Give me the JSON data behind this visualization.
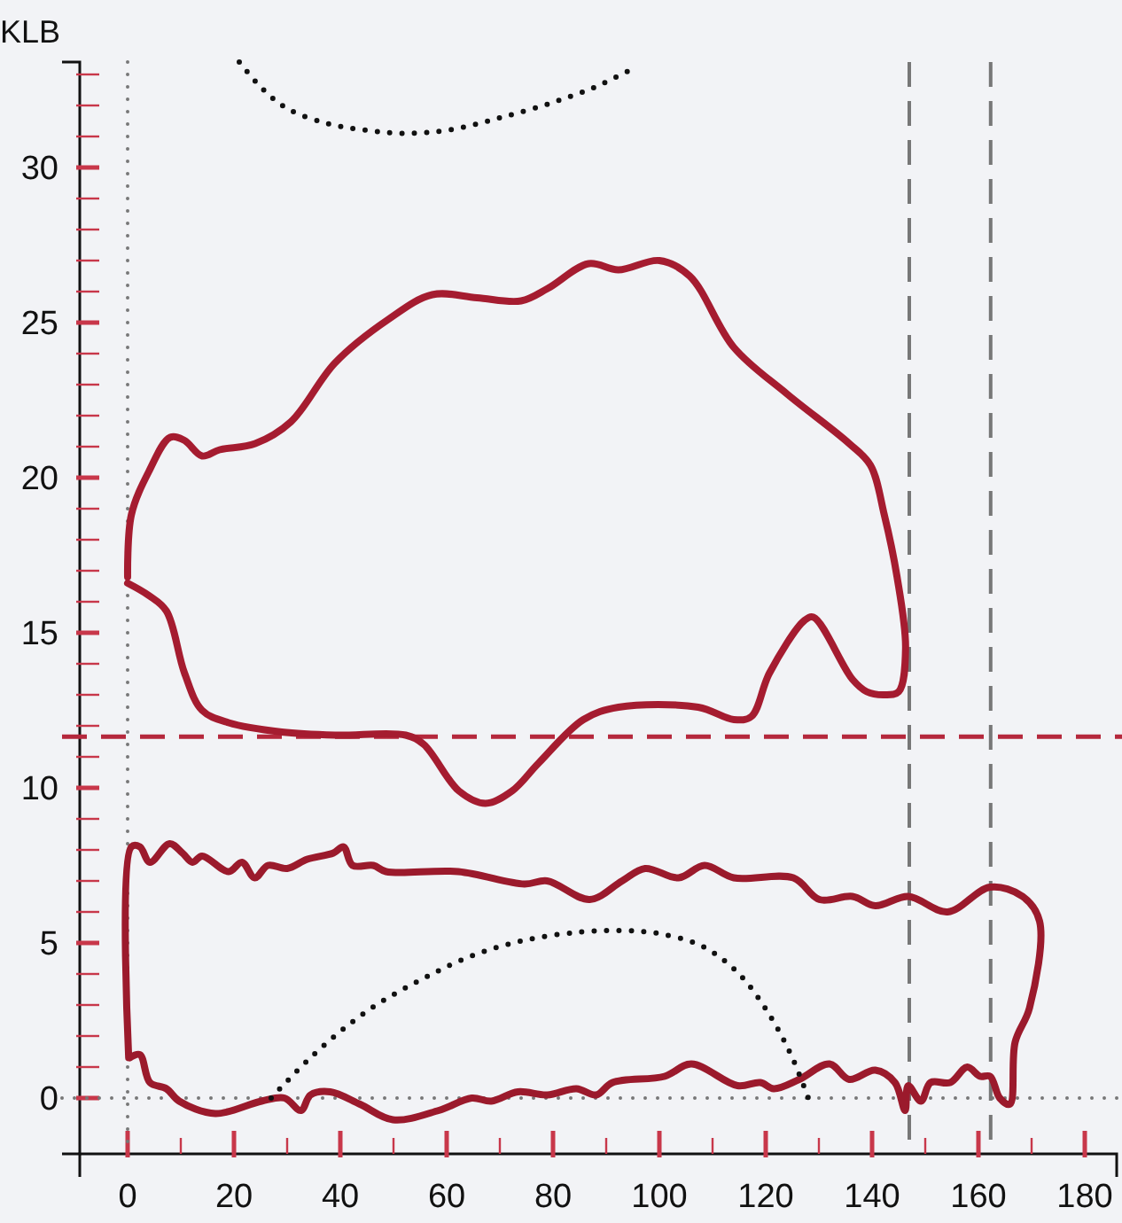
{
  "chart_data": {
    "type": "line",
    "ylabel": "KLB",
    "xlim": [
      -9,
      186
    ],
    "ylim": [
      -1.8,
      33.4
    ],
    "xticks": [
      0,
      {
        "value": 10,
        "label": null
      },
      20,
      {
        "value": 30,
        "label": null
      },
      40,
      {
        "value": 50,
        "label": null
      },
      60,
      {
        "value": 70,
        "label": null
      },
      80,
      {
        "value": 90,
        "label": null
      },
      100,
      {
        "value": 110,
        "label": null
      },
      120,
      {
        "value": 130,
        "label": null
      },
      140,
      {
        "value": 150,
        "label": null
      },
      160,
      {
        "value": 170,
        "label": null
      },
      180
    ],
    "yticks": [
      0,
      {
        "value": 1,
        "label": null
      },
      {
        "value": 2,
        "label": null
      },
      {
        "value": 3,
        "label": null
      },
      {
        "value": 4,
        "label": null
      },
      5,
      {
        "value": 6,
        "label": null
      },
      {
        "value": 7,
        "label": null
      },
      {
        "value": 8,
        "label": null
      },
      {
        "value": 9,
        "label": null
      },
      10,
      {
        "value": 11,
        "label": null
      },
      {
        "value": 12,
        "label": null
      },
      {
        "value": 13,
        "label": null
      },
      {
        "value": 14,
        "label": null
      },
      15,
      {
        "value": 16,
        "label": null
      },
      {
        "value": 17,
        "label": null
      },
      {
        "value": 18,
        "label": null
      },
      {
        "value": 19,
        "label": null
      },
      20,
      {
        "value": 21,
        "label": null
      },
      {
        "value": 22,
        "label": null
      },
      {
        "value": 23,
        "label": null
      },
      {
        "value": 24,
        "label": null
      },
      25,
      {
        "value": 26,
        "label": null
      },
      {
        "value": 27,
        "label": null
      },
      {
        "value": 28,
        "label": null
      },
      {
        "value": 29,
        "label": null
      },
      30,
      {
        "value": 31,
        "label": null
      },
      {
        "value": 32,
        "label": null
      },
      {
        "value": 33,
        "label": null
      }
    ],
    "grid": false,
    "marker": "none",
    "ref_lines": [
      {
        "axis": "x",
        "value": 0,
        "color": "#777777",
        "line_style": "dotted"
      },
      {
        "axis": "y",
        "value": 0,
        "color": "#777777",
        "line_style": "dotted"
      },
      {
        "axis": "y",
        "value": 11.65,
        "color": "#b5283c",
        "line_style": "dashed"
      },
      {
        "axis": "x",
        "value": 147,
        "color": "#777777",
        "line_style": "dashed"
      },
      {
        "axis": "x",
        "value": 162.3,
        "color": "#777777",
        "line_style": "dashed"
      }
    ],
    "series": [
      {
        "color": "#a51c30",
        "line_style": "solid",
        "x": [
          0,
          0.7,
          4,
          8,
          10.7,
          14,
          17.3,
          24,
          30.7,
          39,
          49,
          57.3,
          65.7,
          74,
          79,
          86.7,
          92.3,
          100,
          105.7,
          114,
          124,
          135.7,
          139.7,
          142.3,
          144.7,
          146.3,
          145,
          142.3,
          139,
          136.3,
          129,
          127.3,
          120.7,
          117.3,
          114,
          107.3,
          92.3,
          85.7,
          77.3,
          72.3,
          67.3,
          62.3,
          55.7,
          52.3,
          39,
          29,
          19,
          14,
          10.7,
          7.3,
          4,
          0
        ],
        "values": [
          16.8,
          18.8,
          20.2,
          21.3,
          21.2,
          20.7,
          20.9,
          21.1,
          21.8,
          23.7,
          25.1,
          25.9,
          25.8,
          25.7,
          26.1,
          26.9,
          26.7,
          27,
          26.5,
          24.2,
          22.7,
          21.1,
          20.4,
          18.8,
          16.8,
          14.5,
          13.1,
          13,
          13.1,
          13.5,
          15.5,
          15.4,
          13.7,
          12.3,
          12.2,
          12.6,
          12.6,
          12.2,
          10.8,
          9.9,
          9.5,
          9.9,
          11.4,
          11.7,
          11.7,
          11.8,
          12.1,
          12.5,
          13.7,
          15.7,
          16.2,
          16.6
        ]
      },
      {
        "color": "#9b1a2c",
        "line_style": "solid",
        "x": [
          0.2,
          0.7,
          2.3,
          4.2,
          7.9,
          10.3,
          12.2,
          14,
          19,
          21.5,
          23.9,
          26.4,
          30,
          33.8,
          38.7,
          40.6,
          42.3,
          46.2,
          48.6,
          62.2,
          74.6,
          78.9,
          86.9,
          93,
          97.3,
          103.6,
          108.5,
          114,
          125.2,
          130.1,
          136.3,
          140.6,
          146.8,
          154.2,
          162.2,
          168.3,
          171.5,
          169.6,
          166.9,
          165.9,
          164,
          162.2,
          160.3,
          157.9,
          154.7,
          151,
          149.2,
          146.8,
          146.2,
          144.3,
          140.6,
          135.7,
          132,
          126.3,
          121.5,
          119,
          114.7,
          106,
          101,
          91.2,
          88.1,
          84.4,
          78.9,
          73.4,
          68.4,
          64.7,
          58.5,
          49.9,
          43.7,
          38.1,
          34.4,
          32.6,
          29.5,
          25.2,
          16.5,
          9.7,
          7.3,
          4.2,
          2.3,
          0.4
        ],
        "values": [
          1.3,
          8.1,
          8.1,
          7.6,
          8.2,
          7.9,
          7.6,
          7.8,
          7.3,
          7.6,
          7.1,
          7.5,
          7.4,
          7.7,
          7.9,
          8.1,
          7.5,
          7.5,
          7.3,
          7.3,
          6.9,
          7.0,
          6.4,
          7.0,
          7.4,
          7.1,
          7.5,
          7.1,
          7.1,
          6.4,
          6.5,
          6.2,
          6.5,
          6.0,
          6.8,
          6.5,
          5.7,
          2.9,
          1.8,
          -0.2,
          0,
          0.7,
          0.7,
          1.0,
          0.5,
          0.5,
          -0.1,
          0.4,
          -0.4,
          0.5,
          0.9,
          0.6,
          1.1,
          0.6,
          0.3,
          0.5,
          0.4,
          1.1,
          0.7,
          0.5,
          0.1,
          0.3,
          0.1,
          0.2,
          -0.1,
          0,
          -0.4,
          -0.7,
          -0.2,
          0.2,
          0.1,
          -0.4,
          0,
          -0.1,
          -0.5,
          -0.1,
          0.3,
          0.5,
          1.4,
          1.3
        ]
      },
      {
        "color": "#111111",
        "line_style": "dotted",
        "x": [
          21,
          25,
          30,
          38,
          45,
          52,
          60,
          70,
          80,
          88,
          94
        ],
        "values": [
          33.4,
          32.6,
          31.9,
          31.4,
          31.2,
          31.1,
          31.2,
          31.6,
          32.1,
          32.6,
          33.1
        ]
      },
      {
        "color": "#111111",
        "line_style": "dotted",
        "x": [
          27,
          35,
          45,
          55,
          65,
          75,
          85,
          93,
          100,
          108,
          115,
          121,
          125,
          128
        ],
        "values": [
          0,
          1.4,
          2.8,
          3.8,
          4.6,
          5.1,
          5.35,
          5.4,
          5.3,
          4.9,
          4.0,
          2.6,
          1.3,
          0
        ]
      }
    ]
  }
}
